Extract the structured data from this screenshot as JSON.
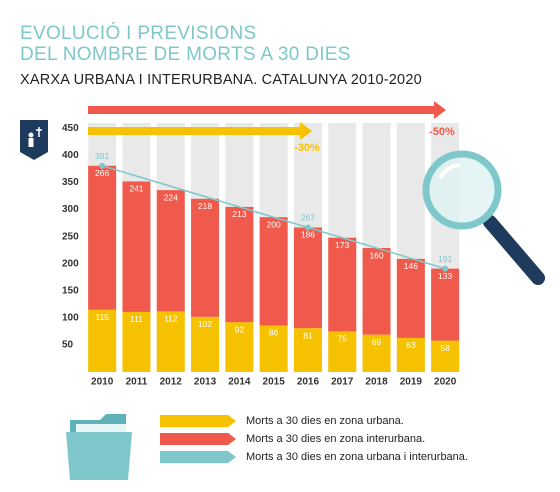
{
  "chart_data": {
    "type": "stacked-bar-line",
    "title": [
      "EVOLUCIÓ I PREVISIONS",
      "DEL NOMBRE DE MORTS A 30 DIES"
    ],
    "subtitle": "XARXA URBANA I INTERURBANA. CATALUNYA 2010-2020",
    "categories": [
      "2010",
      "2011",
      "2012",
      "2013",
      "2014",
      "2015",
      "2016",
      "2017",
      "2018",
      "2019",
      "2020"
    ],
    "series": [
      {
        "name": "Morts a 30 dies en zona urbana.",
        "color": "#f6c200",
        "values": [
          115,
          111,
          112,
          102,
          92,
          86,
          81,
          75,
          69,
          63,
          58
        ]
      },
      {
        "name": "Morts a 30 dies en zona interurbana.",
        "color": "#ef5a4c",
        "values": [
          266,
          241,
          224,
          218,
          213,
          200,
          186,
          173,
          160,
          146,
          133
        ]
      },
      {
        "name": "Morts a 30 dies en zona urbana i interurbana.",
        "color": "#7ec8cc",
        "type": "line",
        "x": [
          2010,
          2016,
          2020
        ],
        "values": [
          381,
          267,
          191
        ]
      }
    ],
    "ylim": [
      0,
      460
    ],
    "yticks": [
      50,
      100,
      150,
      200,
      250,
      300,
      350,
      400,
      450
    ],
    "annotations": [
      {
        "text": "-30%",
        "color": "#f6c200"
      },
      {
        "text": "-50%",
        "color": "#ef5a4c"
      }
    ]
  }
}
